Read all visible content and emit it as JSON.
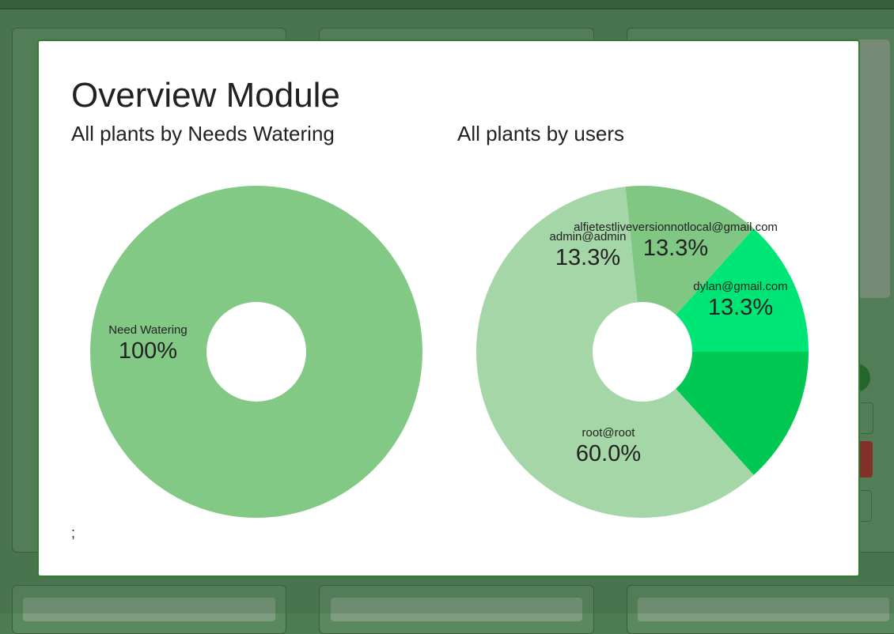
{
  "modal": {
    "title": "Overview Module",
    "footer_text": ";"
  },
  "chart_data": [
    {
      "type": "pie",
      "title": "All plants by Needs Watering",
      "donut": true,
      "slices": [
        {
          "label": "Need Watering",
          "value": 100,
          "display": "100%",
          "color": "#82c985"
        }
      ]
    },
    {
      "type": "pie",
      "title": "All plants by users",
      "donut": true,
      "slices": [
        {
          "label": "dylan@gmail.com",
          "value": 13.3,
          "display": "13.3%",
          "color": "#00c853"
        },
        {
          "label": "root@root",
          "value": 60.0,
          "display": "60.0%",
          "color": "#a5d6a7"
        },
        {
          "label": "admin@admin",
          "value": 13.3,
          "display": "13.3%",
          "color": "#81c784"
        },
        {
          "label": "alfietestliveversionnotlocal@gmail.com",
          "value": 13.3,
          "display": "13.3%",
          "color": "#00e676"
        }
      ]
    }
  ]
}
